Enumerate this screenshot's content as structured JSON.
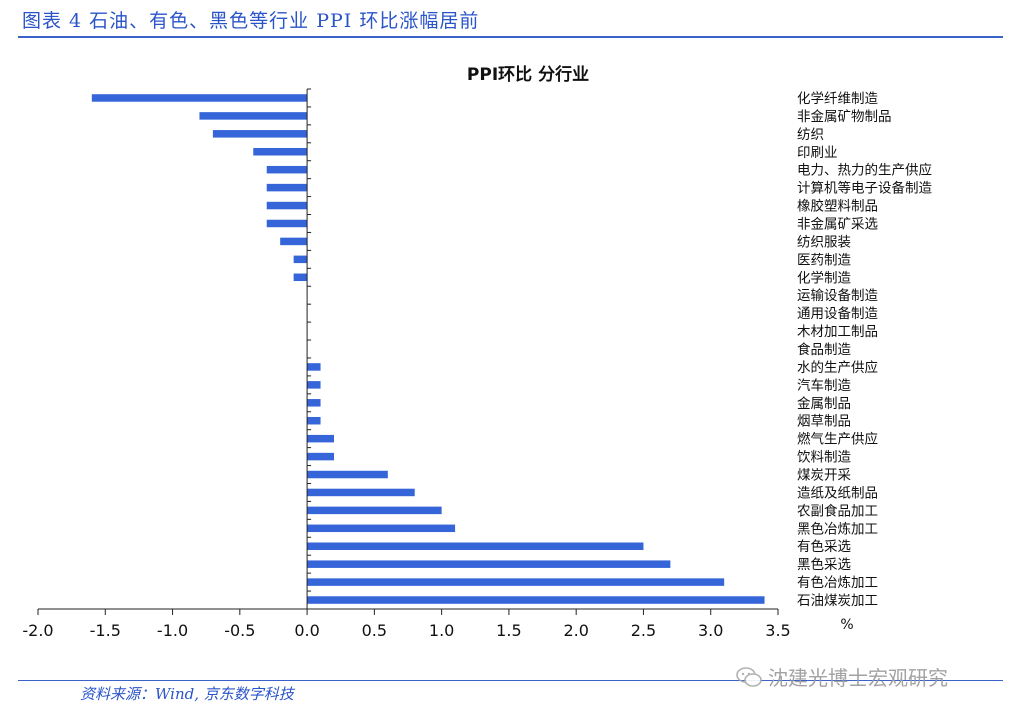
{
  "figure": {
    "title": "图表 4 石油、有色、黑色等行业 PPI 环比涨幅居前",
    "source": "资料来源：Wind, 京东数字科技",
    "watermark": "沈建光博士宏观研究"
  },
  "colors": {
    "bar": "#3565d8",
    "accent": "#2a55c8"
  },
  "chart_data": {
    "type": "bar",
    "orientation": "horizontal",
    "title": "PPI环比 分行业",
    "xlabel": "%",
    "ylabel": "",
    "xlim": [
      -2.0,
      3.5
    ],
    "xticks": [
      "-2.0",
      "-1.5",
      "-1.0",
      "-0.5",
      "0.0",
      "0.5",
      "1.0",
      "1.5",
      "2.0",
      "2.5",
      "3.0",
      "3.5"
    ],
    "tick_values": [
      -2.0,
      -1.5,
      -1.0,
      -0.5,
      0.0,
      0.5,
      1.0,
      1.5,
      2.0,
      2.5,
      3.0,
      3.5
    ],
    "categories": [
      "化学纤维制造",
      "非金属矿物制品",
      "纺织",
      "印刷业",
      "电力、热力的生产供应",
      "计算机等电子设备制造",
      "橡胶塑料制品",
      "非金属矿采选",
      "纺织服装",
      "医药制造",
      "化学制造",
      "运输设备制造",
      "通用设备制造",
      "木材加工制品",
      "食品制造",
      "水的生产供应",
      "汽车制造",
      "金属制品",
      "烟草制品",
      "燃气生产供应",
      "饮料制造",
      "煤炭开采",
      "造纸及纸制品",
      "农副食品加工",
      "黑色冶炼加工",
      "有色采选",
      "黑色采选",
      "有色冶炼加工",
      "石油煤炭加工"
    ],
    "values": [
      -1.6,
      -0.8,
      -0.7,
      -0.4,
      -0.3,
      -0.3,
      -0.3,
      -0.3,
      -0.2,
      -0.1,
      -0.1,
      0.0,
      0.0,
      0.0,
      0.0,
      0.1,
      0.1,
      0.1,
      0.1,
      0.2,
      0.2,
      0.6,
      0.8,
      1.0,
      1.1,
      2.5,
      2.7,
      3.1,
      3.4
    ],
    "grid": false
  }
}
